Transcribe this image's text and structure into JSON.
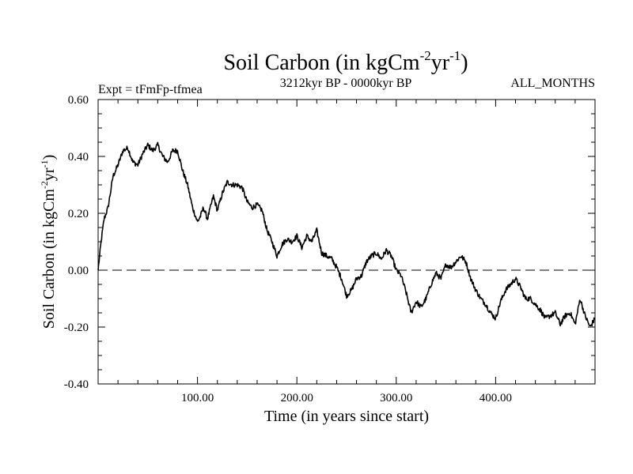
{
  "chart_data": {
    "type": "line",
    "title": "Soil Carbon (in kgCm",
    "title_exp1": "-2",
    "title_mid": "yr",
    "title_exp2": "-1",
    "title_end": ")",
    "subtitle_left": "Expt = tFmFp-tfmea",
    "subtitle_center": "3212kyr BP - 0000kyr BP",
    "subtitle_right": "ALL_MONTHS",
    "xlabel": "Time (in years since start)",
    "ylabel": "Soil Carbon (in kgCm",
    "ylabel_exp1": "-2",
    "ylabel_mid": "yr",
    "ylabel_exp2": "-1",
    "ylabel_end": ")",
    "xlim": [
      0,
      500
    ],
    "ylim": [
      -0.4,
      0.6
    ],
    "xticks": [
      100,
      200,
      300,
      400
    ],
    "xtick_labels": [
      "100.00",
      "200.00",
      "300.00",
      "400.00"
    ],
    "yticks": [
      -0.4,
      -0.2,
      0.0,
      0.2,
      0.4,
      0.6
    ],
    "ytick_labels": [
      "-0.40",
      "-0.20",
      "0.00",
      "0.20",
      "0.40",
      "0.60"
    ],
    "reference_line": 0.0,
    "series": [
      {
        "name": "Soil Carbon",
        "x": [
          0,
          3,
          6,
          10,
          15,
          20,
          25,
          30,
          35,
          40,
          45,
          50,
          55,
          60,
          65,
          70,
          75,
          80,
          85,
          90,
          95,
          100,
          103,
          106,
          110,
          113,
          116,
          120,
          125,
          130,
          135,
          140,
          145,
          150,
          155,
          160,
          165,
          170,
          175,
          180,
          185,
          190,
          195,
          200,
          205,
          210,
          215,
          220,
          225,
          230,
          235,
          240,
          245,
          250,
          255,
          260,
          265,
          270,
          275,
          280,
          285,
          290,
          295,
          300,
          305,
          310,
          315,
          320,
          325,
          330,
          335,
          340,
          345,
          350,
          355,
          360,
          365,
          370,
          375,
          380,
          385,
          390,
          395,
          400,
          405,
          410,
          415,
          420,
          425,
          430,
          435,
          440,
          445,
          450,
          455,
          460,
          465,
          470,
          475,
          480,
          485,
          490,
          495,
          500
        ],
        "y": [
          0.0,
          0.1,
          0.18,
          0.22,
          0.33,
          0.37,
          0.42,
          0.43,
          0.38,
          0.37,
          0.41,
          0.44,
          0.42,
          0.44,
          0.4,
          0.38,
          0.42,
          0.42,
          0.35,
          0.3,
          0.22,
          0.17,
          0.19,
          0.22,
          0.18,
          0.22,
          0.26,
          0.21,
          0.27,
          0.31,
          0.3,
          0.3,
          0.29,
          0.24,
          0.22,
          0.23,
          0.21,
          0.14,
          0.1,
          0.05,
          0.09,
          0.11,
          0.1,
          0.12,
          0.08,
          0.12,
          0.1,
          0.14,
          0.06,
          0.05,
          0.04,
          0.01,
          -0.03,
          -0.09,
          -0.07,
          -0.03,
          -0.02,
          0.03,
          0.05,
          0.06,
          0.04,
          0.07,
          0.05,
          0.0,
          -0.02,
          -0.08,
          -0.15,
          -0.11,
          -0.13,
          -0.1,
          -0.05,
          -0.01,
          -0.03,
          0.02,
          0.01,
          0.03,
          0.05,
          0.03,
          -0.03,
          -0.07,
          -0.1,
          -0.12,
          -0.15,
          -0.17,
          -0.11,
          -0.07,
          -0.05,
          -0.03,
          -0.06,
          -0.1,
          -0.1,
          -0.12,
          -0.14,
          -0.17,
          -0.16,
          -0.15,
          -0.19,
          -0.16,
          -0.15,
          -0.19,
          -0.1,
          -0.16,
          -0.2,
          -0.17
        ]
      }
    ]
  }
}
